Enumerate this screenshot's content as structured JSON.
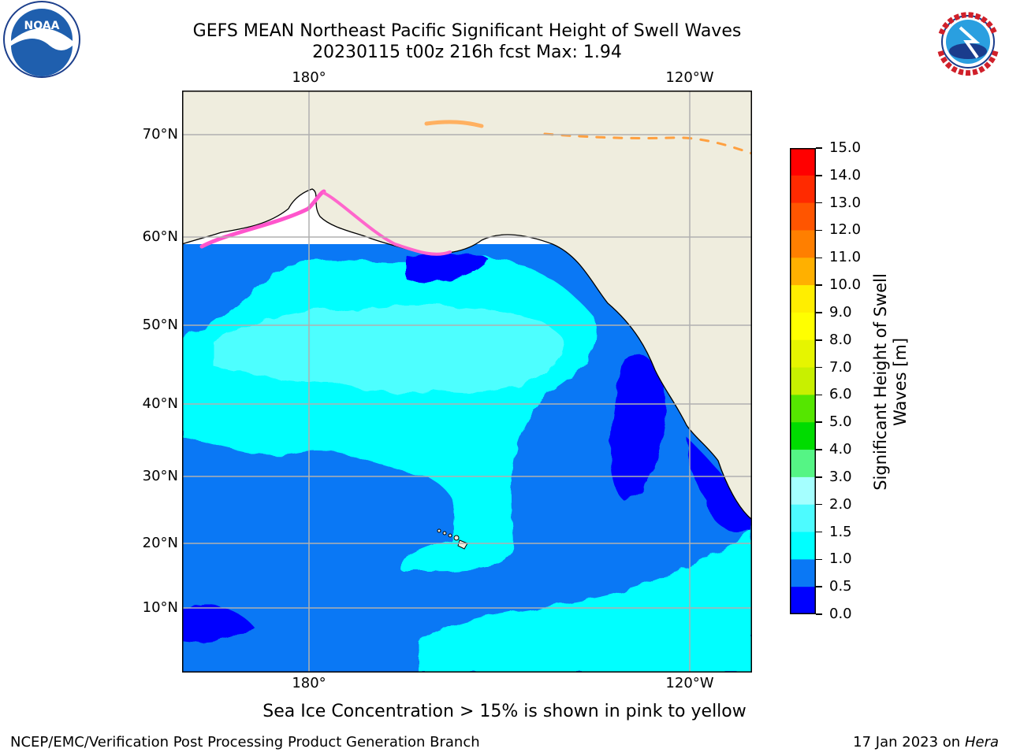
{
  "title": {
    "line1": "GEFS MEAN Northeast Pacific Significant Height of Swell Waves",
    "line2": "20230115 t00z 216h fcst   Max: 1.94"
  },
  "logos": {
    "left": "noaa-logo",
    "left_text": "NOAA",
    "left_ring_text": "NATIONAL OCEANIC AND ATMOSPHERIC ADMINISTRATION · U.S. DEPARTMENT OF COMMERCE",
    "right": "nws-logo",
    "right_ring_text": "NATIONAL WEATHER SERVICE"
  },
  "map": {
    "region": "Northeast Pacific",
    "lat_labels": [
      "70°N",
      "60°N",
      "50°N",
      "40°N",
      "30°N",
      "20°N",
      "10°N"
    ],
    "lon_labels_top": [
      "180°",
      "120°W"
    ],
    "lon_labels_bottom": [
      "180°",
      "120°W"
    ],
    "gridlines": true,
    "land_color": "#efedde",
    "ocean_colors": {
      "deep_blue": "#0000ff",
      "mid_blue": "#0a78f5",
      "cyan": "#00ffff",
      "light_cyan": "#4dffff"
    }
  },
  "colorbar": {
    "title": "Significant Height of Swell Waves [m]",
    "title_line1": "Significant Height of Swell",
    "title_line2": "Waves [m]",
    "ticks": [
      "15.0",
      "14.0",
      "13.0",
      "12.0",
      "11.0",
      "10.0",
      "9.0",
      "8.0",
      "7.0",
      "6.0",
      "5.0",
      "4.0",
      "3.0",
      "2.0",
      "1.5",
      "1.0",
      "0.5",
      "0.0"
    ],
    "colors_top_to_bottom": [
      "#ff0000",
      "#ff2a00",
      "#ff5500",
      "#ff7f00",
      "#ffa500",
      "#ffc800",
      "#ffee00",
      "#ffff00",
      "#e6f500",
      "#c8f000",
      "#96ef00",
      "#55e600",
      "#00dc00",
      "#55f585",
      "#a5ffff",
      "#4dfbff",
      "#00ffff",
      "#0a78f5",
      "#0000ff"
    ]
  },
  "note": "Sea Ice Concentration > 15% is shown in pink to yellow",
  "footer": {
    "credit": "NCEP/EMC/Verification Post Processing Product Generation Branch",
    "date_prefix": "17 Jan 2023 on ",
    "date_host": "Hera"
  }
}
